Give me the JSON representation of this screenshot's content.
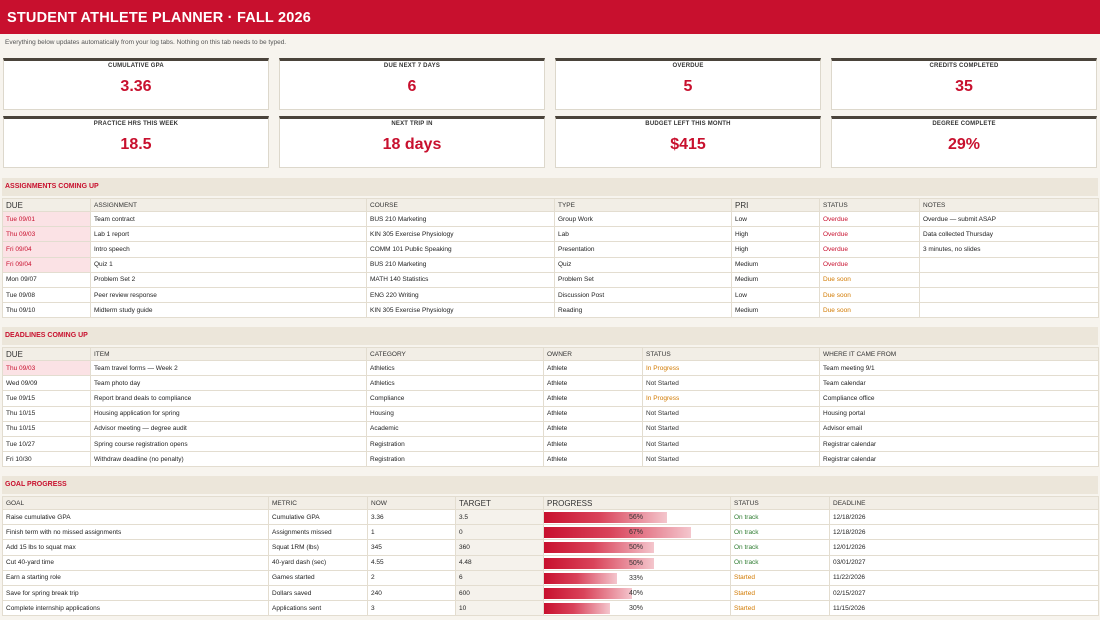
{
  "header": {
    "title": "STUDENT ATHLETE PLANNER  ·  FALL 2026",
    "note": "Everything below updates automatically from your log tabs. Nothing on this tab needs to be typed."
  },
  "kpis": [
    {
      "label": "CUMULATIVE GPA",
      "value": "3.36"
    },
    {
      "label": "DUE NEXT 7 DAYS",
      "value": "6"
    },
    {
      "label": "OVERDUE",
      "value": "5"
    },
    {
      "label": "CREDITS COMPLETED",
      "value": "35"
    },
    {
      "label": "PRACTICE HRS THIS WEEK",
      "value": "18.5"
    },
    {
      "label": "NEXT TRIP IN",
      "value": "18 days"
    },
    {
      "label": "BUDGET LEFT THIS MONTH",
      "value": "$415"
    },
    {
      "label": "DEGREE COMPLETE",
      "value": "29%"
    }
  ],
  "assignments": {
    "title": "ASSIGNMENTS COMING UP",
    "headers": [
      "DUE",
      "ASSIGNMENT",
      "COURSE",
      "TYPE",
      "PRI",
      "STATUS",
      "NOTES"
    ],
    "rows": [
      {
        "due": "Tue 09/01",
        "assignment": "Team contract",
        "course": "BUS 210 Marketing",
        "type": "Group Work",
        "pri": "Low",
        "status": "Overdue",
        "notes": "Overdue — submit ASAP"
      },
      {
        "due": "Thu 09/03",
        "assignment": "Lab 1 report",
        "course": "KIN 305 Exercise Physiology",
        "type": "Lab",
        "pri": "High",
        "status": "Overdue",
        "notes": "Data collected Thursday"
      },
      {
        "due": "Fri 09/04",
        "assignment": "Intro speech",
        "course": "COMM 101 Public Speaking",
        "type": "Presentation",
        "pri": "High",
        "status": "Overdue",
        "notes": "3 minutes, no slides"
      },
      {
        "due": "Fri 09/04",
        "assignment": "Quiz 1",
        "course": "BUS 210 Marketing",
        "type": "Quiz",
        "pri": "Medium",
        "status": "Overdue",
        "notes": ""
      },
      {
        "due": "Mon 09/07",
        "assignment": "Problem Set 2",
        "course": "MATH 140 Statistics",
        "type": "Problem Set",
        "pri": "Medium",
        "status": "Due soon",
        "notes": ""
      },
      {
        "due": "Tue 09/08",
        "assignment": "Peer review response",
        "course": "ENG 220 Writing",
        "type": "Discussion Post",
        "pri": "Low",
        "status": "Due soon",
        "notes": ""
      },
      {
        "due": "Thu 09/10",
        "assignment": "Midterm study guide",
        "course": "KIN 305 Exercise Physiology",
        "type": "Reading",
        "pri": "Medium",
        "status": "Due soon",
        "notes": ""
      }
    ]
  },
  "deadlines": {
    "title": "DEADLINES COMING UP",
    "headers": [
      "DUE",
      "ITEM",
      "CATEGORY",
      "OWNER",
      "STATUS",
      "WHERE IT CAME FROM"
    ],
    "rows": [
      {
        "due": "Thu 09/03",
        "item": "Team travel forms — Week 2",
        "category": "Athletics",
        "owner": "Athlete",
        "status": "In Progress",
        "source": "Team meeting 9/1"
      },
      {
        "due": "Wed 09/09",
        "item": "Team photo day",
        "category": "Athletics",
        "owner": "Athlete",
        "status": "Not Started",
        "source": "Team calendar"
      },
      {
        "due": "Tue 09/15",
        "item": "Report brand deals to compliance",
        "category": "Compliance",
        "owner": "Athlete",
        "status": "In Progress",
        "source": "Compliance office"
      },
      {
        "due": "Thu 10/15",
        "item": "Housing application for spring",
        "category": "Housing",
        "owner": "Athlete",
        "status": "Not Started",
        "source": "Housing portal"
      },
      {
        "due": "Thu 10/15",
        "item": "Advisor meeting — degree audit",
        "category": "Academic",
        "owner": "Athlete",
        "status": "Not Started",
        "source": "Advisor email"
      },
      {
        "due": "Tue 10/27",
        "item": "Spring course registration opens",
        "category": "Registration",
        "owner": "Athlete",
        "status": "Not Started",
        "source": "Registrar calendar"
      },
      {
        "due": "Fri 10/30",
        "item": "Withdraw deadline (no penalty)",
        "category": "Registration",
        "owner": "Athlete",
        "status": "Not Started",
        "source": "Registrar calendar"
      }
    ]
  },
  "goals": {
    "title": "GOAL PROGRESS",
    "headers": [
      "GOAL",
      "METRIC",
      "NOW",
      "TARGET",
      "PROGRESS",
      "STATUS",
      "DEADLINE"
    ],
    "rows": [
      {
        "goal": "Raise cumulative GPA",
        "metric": "Cumulative GPA",
        "now": "3.36",
        "target": "3.5",
        "progress": 0.56,
        "progress_label": "56%",
        "status": "On track",
        "deadline": "12/18/2026"
      },
      {
        "goal": "Finish term with no missed assignments",
        "metric": "Assignments missed",
        "now": "1",
        "target": "0",
        "progress": 0.67,
        "progress_label": "67%",
        "status": "On track",
        "deadline": "12/18/2026"
      },
      {
        "goal": "Add 15 lbs to squat max",
        "metric": "Squat 1RM (lbs)",
        "now": "345",
        "target": "360",
        "progress": 0.5,
        "progress_label": "50%",
        "status": "On track",
        "deadline": "12/01/2026"
      },
      {
        "goal": "Cut 40-yard time",
        "metric": "40-yard dash (sec)",
        "now": "4.55",
        "target": "4.48",
        "progress": 0.5,
        "progress_label": "50%",
        "status": "On track",
        "deadline": "03/01/2027"
      },
      {
        "goal": "Earn a starting role",
        "metric": "Games started",
        "now": "2",
        "target": "6",
        "progress": 0.33,
        "progress_label": "33%",
        "status": "Started",
        "deadline": "11/22/2026"
      },
      {
        "goal": "Save for spring break trip",
        "metric": "Dollars saved",
        "now": "240",
        "target": "600",
        "progress": 0.4,
        "progress_label": "40%",
        "status": "Started",
        "deadline": "02/15/2027"
      },
      {
        "goal": "Complete internship applications",
        "metric": "Applications sent",
        "now": "3",
        "target": "10",
        "progress": 0.3,
        "progress_label": "30%",
        "status": "Started",
        "deadline": "11/15/2026"
      }
    ]
  },
  "colors": {
    "accent": "#c8102e",
    "overdue_bg": "#fbe2e5",
    "soon_fg": "#d27a00",
    "ok_fg": "#2f7d32"
  }
}
